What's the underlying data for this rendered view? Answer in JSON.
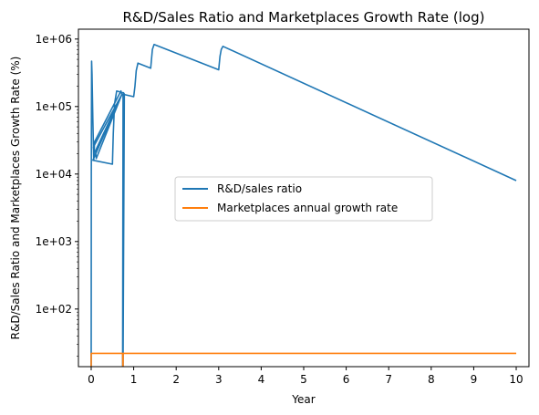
{
  "chart_data": {
    "type": "line",
    "title": "R&D/Sales Ratio and Marketplaces Growth Rate (log)",
    "xlabel": "Year",
    "ylabel": "R&D/Sales Ratio and Marketplaces Growth Rate (%)",
    "xlim": [
      -0.3,
      10.3
    ],
    "ylim": [
      14,
      1400000
    ],
    "yscale": "log",
    "x_ticks": [
      0,
      1,
      2,
      3,
      4,
      5,
      6,
      7,
      8,
      9,
      10
    ],
    "x_tick_labels": [
      "0",
      "1",
      "2",
      "3",
      "4",
      "5",
      "6",
      "7",
      "8",
      "9",
      "10"
    ],
    "y_ticks": [
      100,
      1000,
      10000,
      100000,
      1000000
    ],
    "y_tick_labels": [
      "1e+02",
      "1e+03",
      "1e+04",
      "1e+05",
      "1e+06"
    ],
    "grid": false,
    "legend_position": "center-right",
    "series": [
      {
        "name": "R&D/sales ratio",
        "color": "#1f77b4",
        "x": [
          0,
          0.001,
          0.003,
          0.01,
          0.02,
          0.04,
          0.06,
          0.08,
          0.7,
          0.72,
          0.1,
          0.12,
          0.7,
          0.72,
          0.05,
          0.07,
          0.7,
          0.72,
          0.04,
          0.5,
          0.52,
          0.55,
          0.6,
          0.75,
          0.78,
          0.75,
          0.755,
          0.74,
          0.74,
          0.75,
          0.76,
          0.79,
          1.0,
          1.03,
          1.06,
          1.1,
          1.4,
          1.44,
          1.48,
          3.0,
          3.03,
          3.06,
          3.1,
          10.0
        ],
        "y": [
          14,
          100,
          10000,
          470000,
          300000,
          60000,
          16000,
          30000,
          170000,
          150000,
          22000,
          17000,
          140000,
          150000,
          25000,
          18000,
          140000,
          150000,
          16000,
          14000,
          40000,
          110000,
          170000,
          160000,
          150000,
          14,
          120000,
          14,
          14,
          150000,
          160000,
          150000,
          140000,
          200000,
          340000,
          440000,
          370000,
          700000,
          830000,
          350000,
          550000,
          700000,
          780000,
          8000
        ]
      },
      {
        "name": "Marketplaces annual growth rate",
        "color": "#ff7f0e",
        "x": [
          0,
          0.001,
          0.02,
          0.74,
          0.745,
          0.75,
          0.752,
          10.0
        ],
        "y": [
          14,
          22,
          22,
          22,
          14,
          14,
          22,
          22
        ]
      }
    ]
  }
}
